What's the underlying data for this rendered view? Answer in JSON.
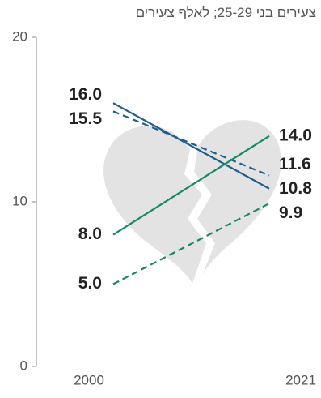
{
  "chart_data": {
    "type": "line",
    "title": "צעירים בני 25-29; לאלף צעירים",
    "categories": [
      "2000",
      "2021"
    ],
    "ylim": [
      0,
      20
    ],
    "yticks": [
      0,
      10,
      20
    ],
    "series": [
      {
        "color": "#1f5f8b",
        "dashed": false,
        "values": [
          16.0,
          10.8
        ],
        "value_labels": [
          "16.0",
          "10.8"
        ]
      },
      {
        "color": "#1f5f8b",
        "dashed": true,
        "values": [
          15.5,
          11.6
        ],
        "value_labels": [
          "15.5",
          "11.6"
        ]
      },
      {
        "color": "#168a63",
        "dashed": false,
        "values": [
          8.0,
          14.0
        ],
        "value_labels": [
          "8.0",
          "14.0"
        ]
      },
      {
        "color": "#168a63",
        "dashed": true,
        "values": [
          5.0,
          9.9
        ],
        "value_labels": [
          "5.0",
          "9.9"
        ]
      }
    ]
  }
}
